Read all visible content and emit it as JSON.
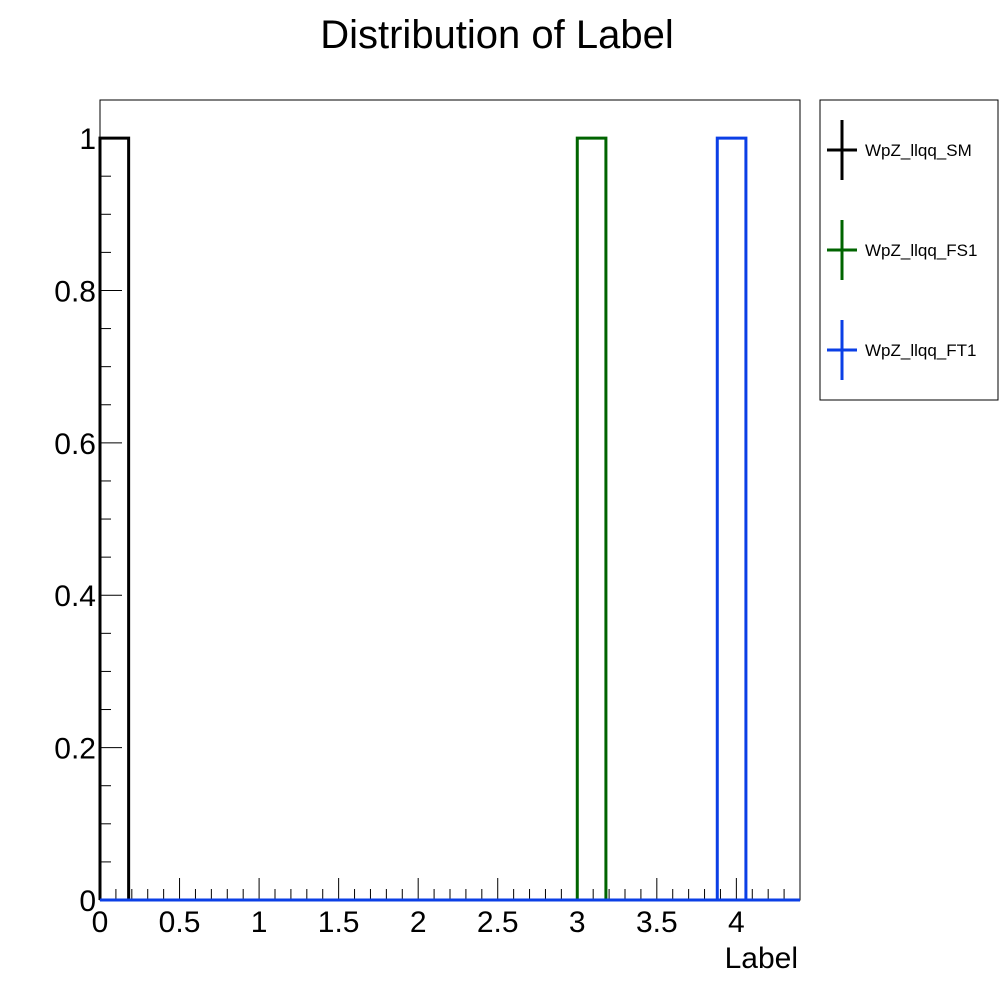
{
  "chart_data": {
    "type": "bar",
    "title": "Distribution of Label",
    "xlabel": "Label",
    "ylabel": "",
    "xlim": [
      0,
      4.4
    ],
    "ylim": [
      0,
      1.05
    ],
    "x_ticks": [
      "0",
      "0.5",
      "1",
      "1.5",
      "2",
      "2.5",
      "3",
      "3.5",
      "4"
    ],
    "y_ticks": [
      "0",
      "0.2",
      "0.4",
      "0.6",
      "0.8",
      "1"
    ],
    "legend_position": "right, outside plot, top",
    "grid": false,
    "series": [
      {
        "name": "WpZ_llqq_SM",
        "color": "#000000",
        "bins": [
          {
            "x0": 0.0,
            "x1": 0.18,
            "value": 1
          }
        ]
      },
      {
        "name": "WpZ_llqq_FS1",
        "color": "#006400",
        "bins": [
          {
            "x0": 3.0,
            "x1": 3.18,
            "value": 1
          }
        ]
      },
      {
        "name": "WpZ_llqq_FT1",
        "color": "#0b3fe6",
        "bins": [
          {
            "x0": 3.88,
            "x1": 4.06,
            "value": 1
          }
        ]
      }
    ]
  }
}
